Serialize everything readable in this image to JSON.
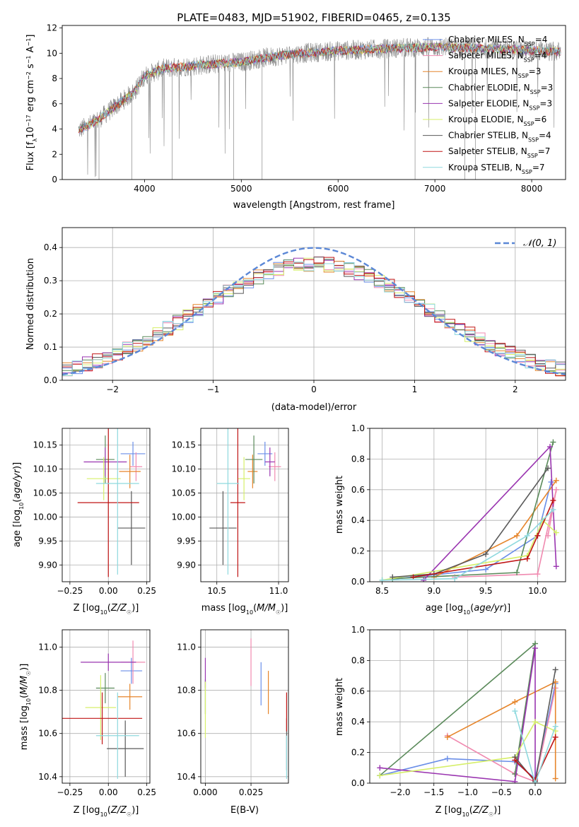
{
  "figure": {
    "title": "PLATE=0483, MJD=51902, FIBERID=0465, z=0.135"
  },
  "colors": {
    "Chabrier MILES": "#6a8ee8",
    "Salpeter MILES": "#f08ab0",
    "Kroupa MILES": "#e6852b",
    "Chabrier ELODIE": "#5a8a5a",
    "Salpeter ELODIE": "#9a35b0",
    "Kroupa ELODIE": "#d6ef6a",
    "Chabrier STELIB": "#5a5a5a",
    "Salpeter STELIB": "#c01515",
    "Kroupa STELIB": "#8fd9de"
  },
  "chart_data": [
    {
      "type": "line",
      "id": "spectrum",
      "title": "PLATE=0483, MJD=51902, FIBERID=0465, z=0.135",
      "xlabel": "wavelength [Angstrom, rest frame]",
      "ylabel": "Flux [f$_\\lambda$10$^{-17}$ erg cm$^{-2}$ s$^{-1}$ A$^{-1}$]",
      "xlim": [
        3150,
        8350
      ],
      "ylim": [
        0,
        12.2
      ],
      "xticks": [
        4000,
        5000,
        6000,
        7000,
        8000
      ],
      "yticks": [
        0,
        2,
        4,
        6,
        8,
        10,
        12
      ],
      "grid": false,
      "legend_position": "right",
      "legend": [
        "Chabrier MILES, N_SSP=4",
        "Salpeter MILES, N_SSP=4",
        "Kroupa MILES, N_SSP=3",
        "Chabrier ELODIE, N_SSP=3",
        "Salpeter ELODIE, N_SSP=3",
        "Kroupa ELODIE, N_SSP=6",
        "Chabrier STELIB, N_SSP=4",
        "Salpeter STELIB, N_SSP=7",
        "Kroupa STELIB, N_SSP=7"
      ],
      "continuum": {
        "x": [
          3320,
          3500,
          3700,
          3900,
          4000,
          4200,
          4500,
          4800,
          5000,
          5200,
          5500,
          5800,
          6000,
          6300,
          6600,
          7000,
          7400,
          7800,
          8300
        ],
        "y": [
          3.9,
          4.6,
          5.8,
          7.0,
          8.2,
          8.8,
          9.0,
          9.2,
          9.3,
          9.6,
          9.9,
          10.1,
          10.2,
          10.3,
          10.4,
          10.5,
          10.4,
          10.3,
          10.1
        ]
      }
    },
    {
      "type": "step",
      "id": "residuals",
      "xlabel": "(data-model)/error",
      "ylabel": "Normed distribution",
      "xlim": [
        -2.5,
        2.5
      ],
      "ylim": [
        0,
        0.46
      ],
      "xticks": [
        -2,
        -1,
        0,
        1,
        2
      ],
      "yticks": [
        0.0,
        0.1,
        0.2,
        0.3,
        0.4
      ],
      "grid": true,
      "legend": [
        "𝒩(0, 1)"
      ],
      "legend_position": "top-right",
      "gaussian": {
        "mean": 0,
        "sigma": 1
      },
      "bin_edges_start": -2.5,
      "bin_width": 0.1
    },
    {
      "type": "errorbar",
      "id": "age-vs-Z",
      "xlabel": "Z [log10(Z/Z☉)]",
      "ylabel": "age  [log10(age/yr)]",
      "xlim": [
        -0.3,
        0.27
      ],
      "ylim": [
        9.865,
        10.185
      ],
      "xticks": [
        -0.25,
        0.0,
        0.25
      ],
      "yticks": [
        9.9,
        9.95,
        10.0,
        10.05,
        10.1,
        10.15
      ],
      "grid": true,
      "points": [
        {
          "series": "Chabrier MILES",
          "x": 0.16,
          "xerr": 0.08,
          "y": 10.132,
          "yerr": 0.025
        },
        {
          "series": "Salpeter MILES",
          "x": 0.18,
          "xerr": 0.04,
          "y": 10.105,
          "yerr": 0.03
        },
        {
          "series": "Kroupa MILES",
          "x": 0.14,
          "xerr": 0.07,
          "y": 10.095,
          "yerr": 0.035
        },
        {
          "series": "Chabrier ELODIE",
          "x": -0.02,
          "xerr": 0.06,
          "y": 10.12,
          "yerr": 0.05
        },
        {
          "series": "Salpeter ELODIE",
          "x": -0.02,
          "xerr": 0.14,
          "y": 10.115,
          "yerr": 0.03
        },
        {
          "series": "Kroupa ELODIE",
          "x": -0.03,
          "xerr": 0.11,
          "y": 10.08,
          "yerr": 0.045
        },
        {
          "series": "Chabrier STELIB",
          "x": 0.15,
          "xerr": 0.09,
          "y": 9.977,
          "yerr": 0.077
        },
        {
          "series": "Salpeter STELIB",
          "x": 0.0,
          "xerr": 0.2,
          "y": 10.03,
          "yerr": 0.155
        },
        {
          "series": "Kroupa STELIB",
          "x": 0.06,
          "xerr": 0.14,
          "y": 10.07,
          "yerr": 0.19
        }
      ]
    },
    {
      "type": "errorbar",
      "id": "age-vs-mass",
      "xlabel": "mass [log10(M/M☉)]",
      "ylabel": "",
      "xlim": [
        10.37,
        11.08
      ],
      "ylim": [
        9.865,
        10.185
      ],
      "xticks": [
        10.5,
        11.0
      ],
      "yticks": [
        9.9,
        9.95,
        10.0,
        10.05,
        10.1,
        10.15
      ],
      "grid": true,
      "points": [
        {
          "series": "Chabrier MILES",
          "x": 10.89,
          "xerr": 0.06,
          "y": 10.132,
          "yerr": 0.025
        },
        {
          "series": "Salpeter MILES",
          "x": 10.97,
          "xerr": 0.05,
          "y": 10.105,
          "yerr": 0.03
        },
        {
          "series": "Kroupa MILES",
          "x": 10.79,
          "xerr": 0.04,
          "y": 10.095,
          "yerr": 0.035
        },
        {
          "series": "Chabrier ELODIE",
          "x": 10.8,
          "xerr": 0.07,
          "y": 10.12,
          "yerr": 0.05
        },
        {
          "series": "Salpeter ELODIE",
          "x": 10.93,
          "xerr": 0.04,
          "y": 10.115,
          "yerr": 0.03
        },
        {
          "series": "Kroupa ELODIE",
          "x": 10.72,
          "xerr": 0.05,
          "y": 10.08,
          "yerr": 0.045
        },
        {
          "series": "Chabrier STELIB",
          "x": 10.55,
          "xerr": 0.11,
          "y": 9.977,
          "yerr": 0.077
        },
        {
          "series": "Salpeter STELIB",
          "x": 10.67,
          "xerr": 0.06,
          "y": 10.03,
          "yerr": 0.155
        },
        {
          "series": "Kroupa STELIB",
          "x": 10.59,
          "xerr": 0.09,
          "y": 10.07,
          "yerr": 0.19
        }
      ]
    },
    {
      "type": "line",
      "id": "weight-vs-age",
      "xlabel": "age  [log10(age/yr)]",
      "ylabel": "mass weight",
      "xlim": [
        8.38,
        10.27
      ],
      "ylim": [
        0,
        1.0
      ],
      "xticks": [
        8.5,
        9.0,
        9.5,
        10.0
      ],
      "yticks": [
        0.0,
        0.2,
        0.4,
        0.6,
        0.8,
        1.0
      ],
      "grid": true,
      "series": [
        {
          "name": "Chabrier MILES",
          "x": [
            8.5,
            9.5,
            10.0,
            10.13
          ],
          "y": [
            0.01,
            0.08,
            0.3,
            0.65
          ]
        },
        {
          "name": "Salpeter MILES",
          "x": [
            9.2,
            10.0,
            10.18,
            10.1
          ],
          "y": [
            0.03,
            0.05,
            0.6,
            0.3
          ]
        },
        {
          "name": "Kroupa MILES",
          "x": [
            9.0,
            9.8,
            10.18
          ],
          "y": [
            0.03,
            0.3,
            0.66
          ]
        },
        {
          "name": "Chabrier ELODIE",
          "x": [
            8.6,
            9.8,
            10.15
          ],
          "y": [
            0.02,
            0.06,
            0.91
          ]
        },
        {
          "name": "Salpeter ELODIE",
          "x": [
            8.9,
            10.12,
            10.18
          ],
          "y": [
            0.01,
            0.88,
            0.1
          ]
        },
        {
          "name": "Kroupa ELODIE",
          "x": [
            8.5,
            9.9,
            10.05,
            10.18
          ],
          "y": [
            0.01,
            0.17,
            0.4,
            0.32
          ]
        },
        {
          "name": "Chabrier STELIB",
          "x": [
            8.6,
            9.0,
            9.5,
            10.1
          ],
          "y": [
            0.03,
            0.05,
            0.18,
            0.74
          ]
        },
        {
          "name": "Salpeter STELIB",
          "x": [
            8.8,
            9.9,
            10.0,
            10.15
          ],
          "y": [
            0.03,
            0.15,
            0.3,
            0.53
          ]
        },
        {
          "name": "Kroupa STELIB",
          "x": [
            8.5,
            9.2,
            9.9,
            10.15
          ],
          "y": [
            0.01,
            0.02,
            0.3,
            0.47
          ]
        }
      ]
    },
    {
      "type": "errorbar",
      "id": "mass-vs-Z",
      "xlabel": "Z [log10(Z/Z☉)]",
      "ylabel": "mass [log10(M/M☉)]",
      "xlim": [
        -0.3,
        0.27
      ],
      "ylim": [
        10.37,
        11.08
      ],
      "xticks": [
        -0.25,
        0.0,
        0.25
      ],
      "yticks": [
        10.4,
        10.6,
        10.8,
        11.0
      ],
      "grid": true,
      "points": [
        {
          "series": "Chabrier MILES",
          "x": 0.15,
          "xerr": 0.07,
          "y": 10.89,
          "yerr": 0.06
        },
        {
          "series": "Salpeter MILES",
          "x": 0.16,
          "xerr": 0.08,
          "y": 10.93,
          "yerr": 0.1
        },
        {
          "series": "Kroupa MILES",
          "x": 0.14,
          "xerr": 0.08,
          "y": 10.77,
          "yerr": 0.06
        },
        {
          "series": "Chabrier ELODIE",
          "x": -0.02,
          "xerr": 0.06,
          "y": 10.81,
          "yerr": 0.07
        },
        {
          "series": "Salpeter ELODIE",
          "x": 0.0,
          "xerr": 0.18,
          "y": 10.93,
          "yerr": 0.04
        },
        {
          "series": "Kroupa ELODIE",
          "x": -0.05,
          "xerr": 0.1,
          "y": 10.72,
          "yerr": 0.15
        },
        {
          "series": "Chabrier STELIB",
          "x": 0.11,
          "xerr": 0.12,
          "y": 10.53,
          "yerr": 0.13
        },
        {
          "series": "Salpeter STELIB",
          "x": -0.04,
          "xerr": 0.26,
          "y": 10.67,
          "yerr": 0.12
        },
        {
          "series": "Kroupa STELIB",
          "x": 0.06,
          "xerr": 0.14,
          "y": 10.59,
          "yerr": 0.2
        }
      ]
    },
    {
      "type": "errorbar",
      "id": "mass-vs-EBV",
      "xlabel": "E(B-V)",
      "ylabel": "",
      "xlim": [
        -0.0025,
        0.0455
      ],
      "ylim": [
        10.37,
        11.08
      ],
      "xticks": [
        0.0,
        0.025
      ],
      "yticks": [
        10.4,
        10.6,
        10.8,
        11.0
      ],
      "grid": true,
      "points": [
        {
          "series": "Chabrier MILES",
          "x": 0.0305,
          "xerr": 0.0,
          "y": 10.83,
          "yerr": 0.1
        },
        {
          "series": "Salpeter MILES",
          "x": 0.025,
          "xerr": 0.0,
          "y": 10.93,
          "yerr": 0.11
        },
        {
          "series": "Kroupa MILES",
          "x": 0.0345,
          "xerr": 0.0,
          "y": 10.79,
          "yerr": 0.1
        },
        {
          "series": "Chabrier ELODIE",
          "x": 0.0,
          "xerr": 0.0,
          "y": 10.77,
          "yerr": 0.08
        },
        {
          "series": "Salpeter ELODIE",
          "x": 0.0,
          "xerr": 0.0,
          "y": 10.88,
          "yerr": 0.07
        },
        {
          "series": "Kroupa ELODIE",
          "x": 0.0,
          "xerr": 0.0,
          "y": 10.71,
          "yerr": 0.13
        },
        {
          "series": "Chabrier STELIB",
          "x": 0.0445,
          "xerr": 0.0,
          "y": 10.55,
          "yerr": 0.12
        },
        {
          "series": "Salpeter STELIB",
          "x": 0.0445,
          "xerr": 0.0,
          "y": 10.7,
          "yerr": 0.09
        },
        {
          "series": "Kroupa STELIB",
          "x": 0.0445,
          "xerr": 0.0,
          "y": 10.49,
          "yerr": 0.1
        }
      ]
    },
    {
      "type": "line",
      "id": "weight-vs-Z",
      "xlabel": "Z [log10(Z/Z☉)]",
      "ylabel": "mass weight",
      "xlim": [
        -2.45,
        0.45
      ],
      "ylim": [
        0,
        1.0
      ],
      "xticks": [
        -2.0,
        -1.5,
        -1.0,
        -0.5,
        0.0
      ],
      "yticks": [
        0.0,
        0.2,
        0.4,
        0.6,
        0.8,
        1.0
      ],
      "grid": true,
      "series": [
        {
          "name": "Chabrier MILES",
          "x": [
            -2.3,
            -1.3,
            -0.3,
            0.0,
            0.3
          ],
          "y": [
            0.05,
            0.16,
            0.14,
            0.03,
            0.65
          ]
        },
        {
          "name": "Salpeter MILES",
          "x": [
            -1.3,
            -0.3,
            0.0,
            0.3
          ],
          "y": [
            0.31,
            0.06,
            0.01,
            0.62
          ]
        },
        {
          "name": "Kroupa MILES",
          "x": [
            -1.3,
            -0.3,
            0.3,
            0.3
          ],
          "y": [
            0.3,
            0.53,
            0.66,
            0.03
          ]
        },
        {
          "name": "Chabrier ELODIE",
          "x": [
            -2.3,
            0.0,
            -0.3
          ],
          "y": [
            0.05,
            0.91,
            0.06
          ]
        },
        {
          "name": "Salpeter ELODIE",
          "x": [
            -2.3,
            -0.3,
            0.0,
            0.0
          ],
          "y": [
            0.1,
            0.01,
            0.88,
            0.02
          ]
        },
        {
          "name": "Kroupa ELODIE",
          "x": [
            -2.3,
            -0.3,
            0.0,
            0.3
          ],
          "y": [
            0.05,
            0.17,
            0.4,
            0.34
          ]
        },
        {
          "name": "Chabrier STELIB",
          "x": [
            -0.3,
            0.0,
            0.3
          ],
          "y": [
            0.17,
            0.01,
            0.74
          ]
        },
        {
          "name": "Salpeter STELIB",
          "x": [
            -0.3,
            0.0,
            0.3
          ],
          "y": [
            0.15,
            0.02,
            0.3
          ]
        },
        {
          "name": "Kroupa STELIB",
          "x": [
            -0.3,
            0.0,
            0.3
          ],
          "y": [
            0.47,
            0.0,
            0.37
          ]
        }
      ]
    }
  ]
}
